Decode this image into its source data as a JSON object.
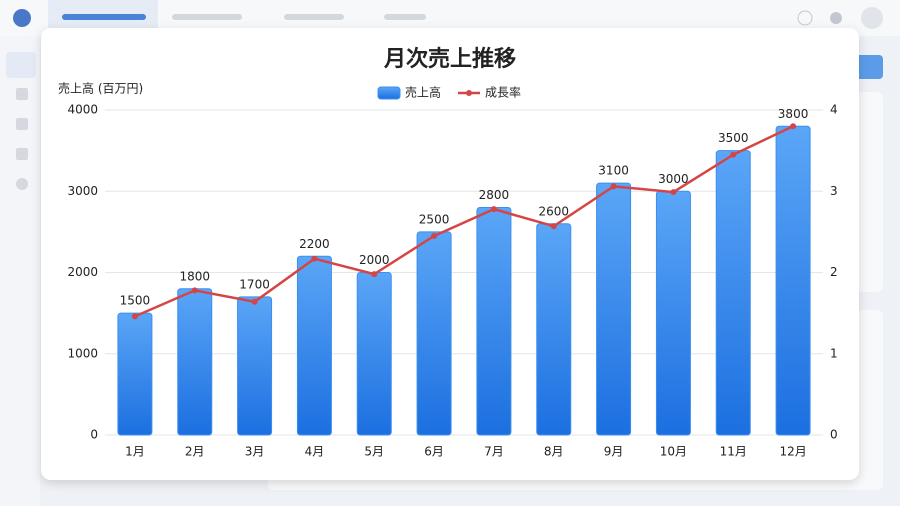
{
  "chart_data": {
    "type": "bar",
    "title": "月次売上推移",
    "y_label": "売上高 (百万円)",
    "categories": [
      "1月",
      "2月",
      "3月",
      "4月",
      "5月",
      "6月",
      "7月",
      "8月",
      "9月",
      "10月",
      "11月",
      "12月"
    ],
    "series": [
      {
        "name": "売上高",
        "type": "bar",
        "color": "#3b8ff0",
        "values": [
          1500,
          1800,
          1700,
          2200,
          2000,
          2500,
          2800,
          2600,
          3100,
          3000,
          3500,
          3800
        ]
      },
      {
        "name": "成長率",
        "type": "line",
        "axis": "y2",
        "color": "#d64545",
        "values": [
          1.46,
          1.78,
          1.64,
          2.17,
          1.98,
          2.45,
          2.78,
          2.57,
          3.06,
          2.99,
          3.45,
          3.8
        ]
      }
    ],
    "ylim": [
      0,
      4000
    ],
    "yticks": [
      0,
      1000,
      2000,
      3000,
      4000
    ],
    "y2lim": [
      0,
      4
    ],
    "y2ticks": [
      0,
      1,
      2,
      3,
      4
    ],
    "grid": true,
    "legend": "top",
    "data_labels": true
  }
}
